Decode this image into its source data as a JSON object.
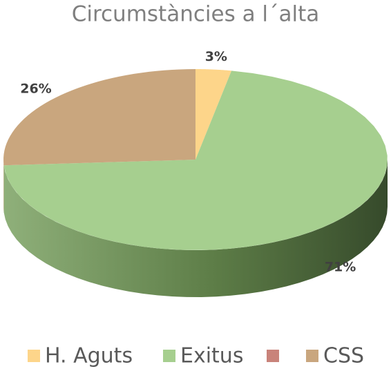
{
  "chart_data": {
    "type": "pie3d",
    "title": "Circumstàncies a l´alta",
    "categories": [
      "H. Aguts",
      "Exitus",
      null,
      "CSS"
    ],
    "values": [
      3,
      71,
      0,
      26
    ],
    "value_labels": [
      "3%",
      "71%",
      null,
      "26%"
    ],
    "colors": [
      "#fdd58a",
      "#a6cf8f",
      "#c9837a",
      "#c9a67e"
    ]
  }
}
